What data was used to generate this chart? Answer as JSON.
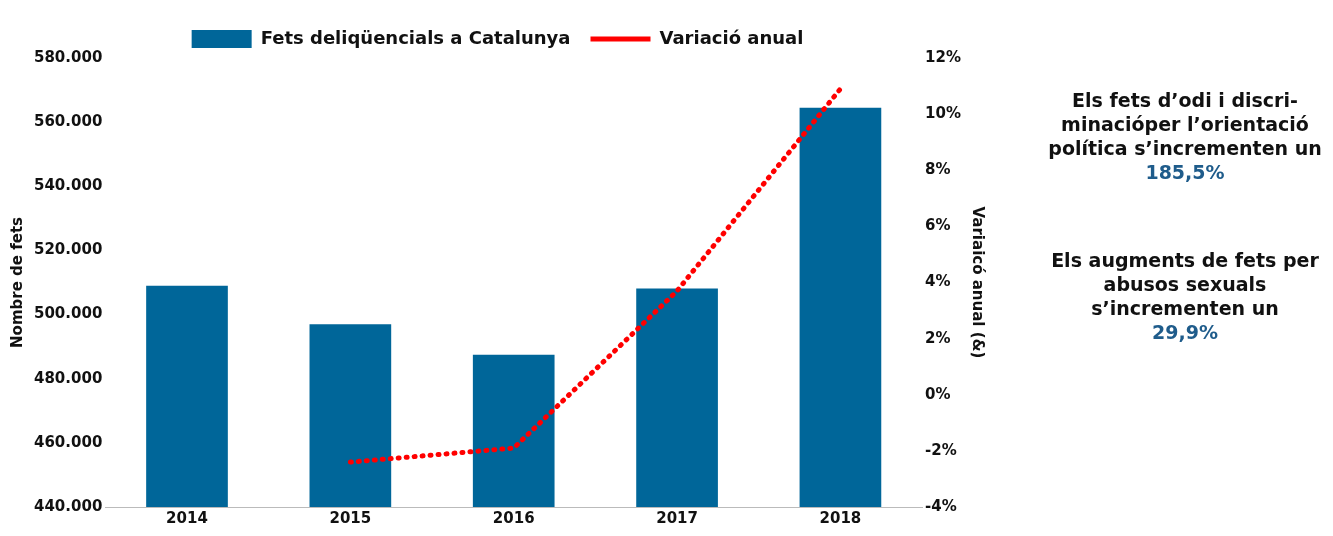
{
  "chart_data": {
    "type": "bar",
    "categories": [
      "2014",
      "2015",
      "2016",
      "2017",
      "2018"
    ],
    "ylabel": "Nombre de fets",
    "y2label": "Variaicó anual (&)",
    "series": [
      {
        "name": "Fets deliqüencials a Catalunya",
        "color": "#006699",
        "values": [
          509000,
          497000,
          487500,
          508100,
          564500
        ]
      },
      {
        "name": "Variació anual",
        "type": "line",
        "axis": "y2",
        "color": "#ff0000",
        "line_style": "dotted",
        "values": [
          null,
          -2.4,
          -1.9,
          3.7,
          10.9
        ]
      }
    ],
    "ylim": [
      440000,
      580000
    ],
    "yticks": [
      {
        "value": 440000,
        "label": "440.000"
      },
      {
        "value": 460000,
        "label": "460.000"
      },
      {
        "value": 480000,
        "label": "480.000"
      },
      {
        "value": 500000,
        "label": "500.000"
      },
      {
        "value": 520000,
        "label": "520.000"
      },
      {
        "value": 540000,
        "label": "540.000"
      },
      {
        "value": 560000,
        "label": "560.000"
      },
      {
        "value": 580000,
        "label": "580.000"
      }
    ],
    "y2lim": [
      -4,
      12
    ],
    "y2ticks": [
      {
        "value": -4,
        "label": "-4%"
      },
      {
        "value": -2,
        "label": "-2%"
      },
      {
        "value": 0,
        "label": "0%"
      },
      {
        "value": 2,
        "label": "2%"
      },
      {
        "value": 4,
        "label": "4%"
      },
      {
        "value": 6,
        "label": "6%"
      },
      {
        "value": 8,
        "label": "8%"
      },
      {
        "value": 10,
        "label": "10%"
      },
      {
        "value": 12,
        "label": "12%"
      }
    ],
    "grid": false,
    "legend": "top",
    "marker": "none",
    "annotations": [
      "Els fets d’odi i discri-minacióper l’orientació política s’incrementen un",
      "185,5%",
      "Els augments de fets per abusos sexuals s’incrementen un",
      "29,9%"
    ]
  }
}
